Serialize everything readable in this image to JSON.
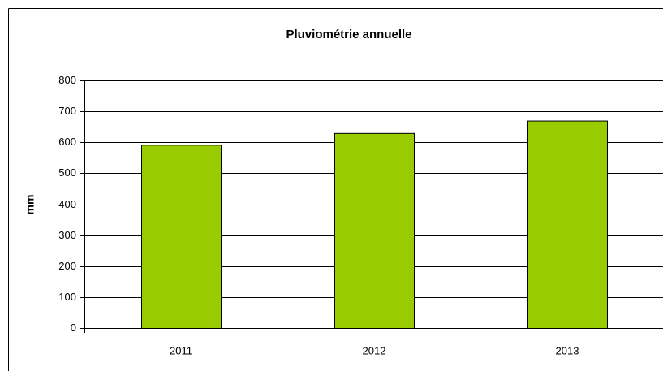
{
  "chart_data": {
    "type": "bar",
    "title": "Pluviométrie annuelle",
    "y_label": "mm",
    "categories": [
      "2011",
      "2012",
      "2013"
    ],
    "values": [
      592,
      630,
      670
    ],
    "color": "#99cc00",
    "ylim": [
      0,
      800
    ],
    "yticks": [
      0,
      100,
      200,
      300,
      400,
      500,
      600,
      700,
      800
    ],
    "grid": true
  }
}
